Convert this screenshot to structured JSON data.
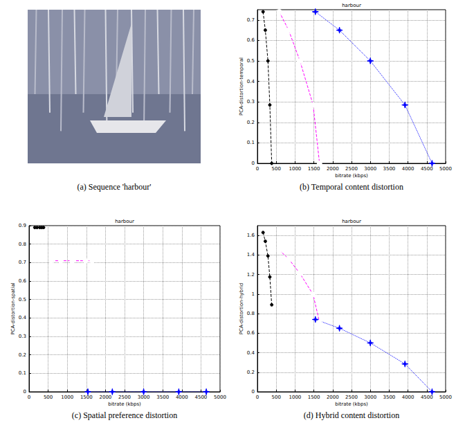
{
  "image": {
    "caption": "(a) Sequence 'harbour'"
  },
  "chart_data": [
    {
      "type": "line",
      "title": "harbour",
      "caption": "(b) Temporal content distortion",
      "x_label": "bitrate (kbps)",
      "y_label": "PCA-distortion-temporal",
      "xlim": [
        0,
        5000
      ],
      "xticks": [
        0,
        500,
        1000,
        1500,
        2000,
        2500,
        3000,
        3500,
        4000,
        4500,
        5000
      ],
      "ylim": [
        0,
        0.75
      ],
      "yticks": [
        0,
        0.1,
        0.2,
        0.3,
        0.4,
        0.5,
        0.6,
        0.7
      ],
      "grid": true,
      "series": [
        {
          "color": "#000000",
          "marker": "dot",
          "line_style": "dashed",
          "x": [
            150,
            210,
            280,
            330,
            380
          ],
          "values": [
            0.74,
            0.65,
            0.5,
            0.285,
            0
          ]
        },
        {
          "color": "#ff00ff",
          "marker": "circle",
          "line_style": "dashed",
          "x": [
            580,
            830,
            1130,
            1480,
            1650
          ],
          "values": [
            0.74,
            0.65,
            0.5,
            0.285,
            0
          ]
        },
        {
          "color": "#0000ff",
          "marker": "star",
          "line_style": "dotted",
          "x": [
            1540,
            2180,
            3000,
            3920,
            4640
          ],
          "values": [
            0.74,
            0.65,
            0.5,
            0.285,
            0
          ]
        }
      ]
    },
    {
      "type": "line",
      "title": "harbour",
      "caption": "(c) Spatial preference distortion",
      "x_label": "bitrate (kbps)",
      "y_label": "PCA-distortion-spatial",
      "xlim": [
        0,
        5000
      ],
      "xticks": [
        0,
        500,
        1000,
        1500,
        2000,
        2500,
        3000,
        3500,
        4000,
        4500,
        5000
      ],
      "ylim": [
        0,
        0.9
      ],
      "yticks": [
        0,
        0.1,
        0.2,
        0.3,
        0.4,
        0.5,
        0.6,
        0.7,
        0.8,
        0.9
      ],
      "grid": true,
      "series": [
        {
          "color": "#000000",
          "marker": "dot",
          "line_style": "dashed",
          "x": [
            150,
            210,
            280,
            330,
            380
          ],
          "values": [
            0.89,
            0.89,
            0.89,
            0.89,
            0.89
          ]
        },
        {
          "color": "#ff00ff",
          "marker": "circle",
          "line_style": "dashed",
          "x": [
            580,
            830,
            1130,
            1480,
            1650
          ],
          "values": [
            0.71,
            0.71,
            0.71,
            0.71,
            0.71
          ]
        },
        {
          "color": "#0000ff",
          "marker": "star",
          "line_style": "dotted",
          "x": [
            1540,
            2180,
            3000,
            3920,
            4640
          ],
          "values": [
            0,
            0,
            0,
            0,
            0
          ]
        }
      ]
    },
    {
      "type": "line",
      "title": "harbour",
      "caption": "(d) Hybrid content distortion",
      "x_label": "bitrate (kbps)",
      "y_label": "PCA-distortion-hybrid",
      "xlim": [
        0,
        5000
      ],
      "xticks": [
        0,
        500,
        1000,
        1500,
        2000,
        2500,
        3000,
        3500,
        4000,
        4500,
        5000
      ],
      "ylim": [
        0,
        1.7
      ],
      "yticks": [
        0,
        0.2,
        0.4,
        0.6,
        0.8,
        1,
        1.2,
        1.4,
        1.6
      ],
      "grid": true,
      "series": [
        {
          "color": "#000000",
          "marker": "dot",
          "line_style": "dashed",
          "x": [
            150,
            210,
            280,
            330,
            380
          ],
          "values": [
            1.63,
            1.54,
            1.39,
            1.175,
            0.89
          ]
        },
        {
          "color": "#ff00ff",
          "marker": "circle",
          "line_style": "dashed",
          "x": [
            580,
            830,
            1130,
            1480,
            1650
          ],
          "values": [
            1.45,
            1.36,
            1.21,
            0.995,
            0.71
          ]
        },
        {
          "color": "#0000ff",
          "marker": "star",
          "line_style": "dotted",
          "x": [
            1540,
            2180,
            3000,
            3920,
            4640
          ],
          "values": [
            0.74,
            0.65,
            0.5,
            0.285,
            0
          ]
        }
      ]
    }
  ]
}
